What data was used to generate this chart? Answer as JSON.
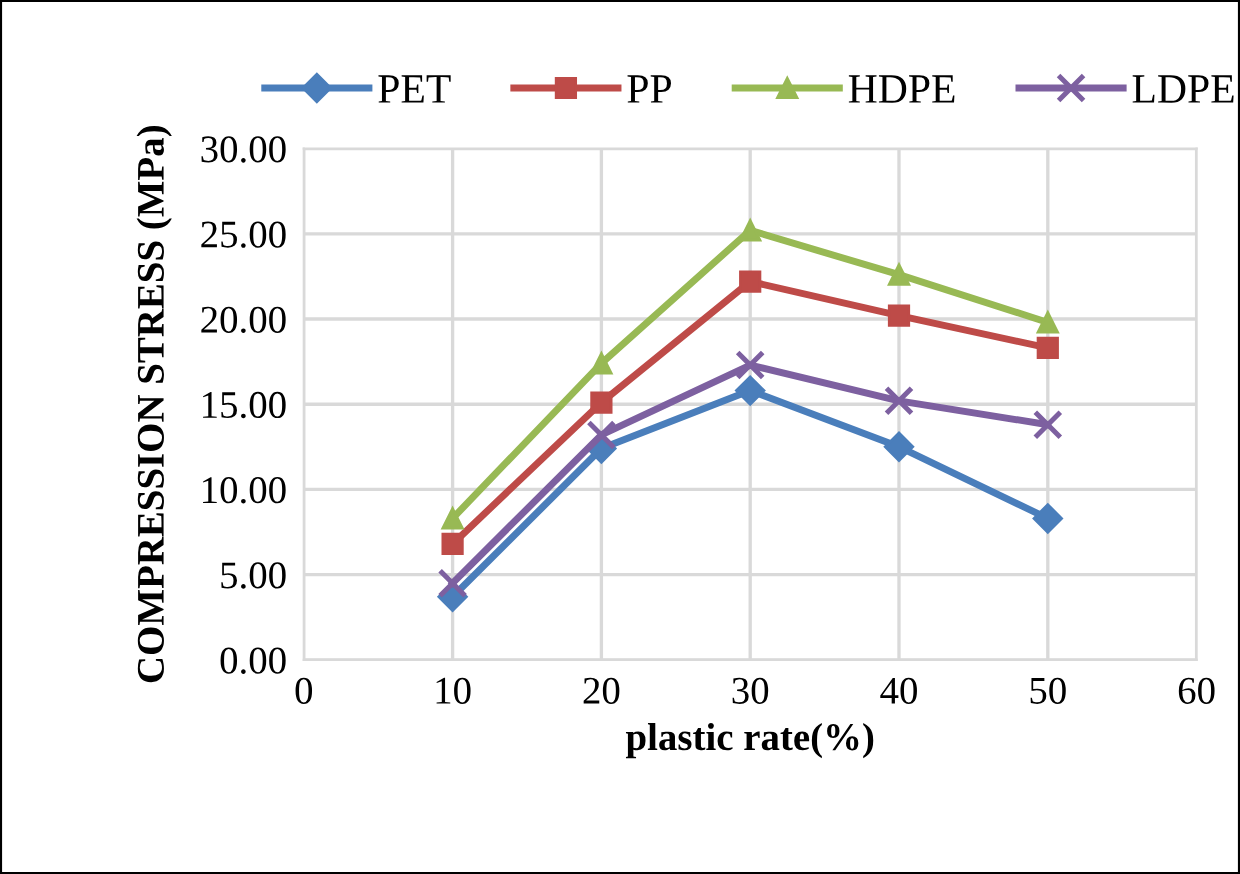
{
  "chart_data": {
    "type": "line",
    "xlabel": "plastic rate(%)",
    "ylabel": "COMPRESSION STRESS (MPa)",
    "x": [
      10,
      20,
      30,
      40,
      50
    ],
    "series": [
      {
        "name": "PET",
        "color": "#4a7ebb",
        "marker": "diamond",
        "values": [
          3.7,
          12.4,
          15.8,
          12.5,
          8.3
        ]
      },
      {
        "name": "PP",
        "color": "#be4b48",
        "marker": "square",
        "values": [
          6.8,
          15.1,
          22.2,
          20.2,
          18.3
        ]
      },
      {
        "name": "HDPE",
        "color": "#98b954",
        "marker": "triangle",
        "values": [
          8.3,
          17.4,
          25.2,
          22.6,
          19.8
        ]
      },
      {
        "name": "LDPE",
        "color": "#7d60a0",
        "marker": "cross",
        "values": [
          4.5,
          13.2,
          17.3,
          15.2,
          13.8
        ]
      }
    ],
    "xlim": [
      0,
      60
    ],
    "xticks": [
      0,
      10,
      20,
      30,
      40,
      50,
      60
    ],
    "ylim": [
      0,
      30
    ],
    "yticks": [
      {
        "value": 0,
        "label": "0.00"
      },
      {
        "value": 5,
        "label": "5.00"
      },
      {
        "value": 10,
        "label": "10.00"
      },
      {
        "value": 15,
        "label": "15.00"
      },
      {
        "value": 20,
        "label": "20.00"
      },
      {
        "value": 25,
        "label": "25.00"
      },
      {
        "value": 30,
        "label": "30.00"
      }
    ],
    "grid": true,
    "legend": "top",
    "line_style": "solid"
  }
}
